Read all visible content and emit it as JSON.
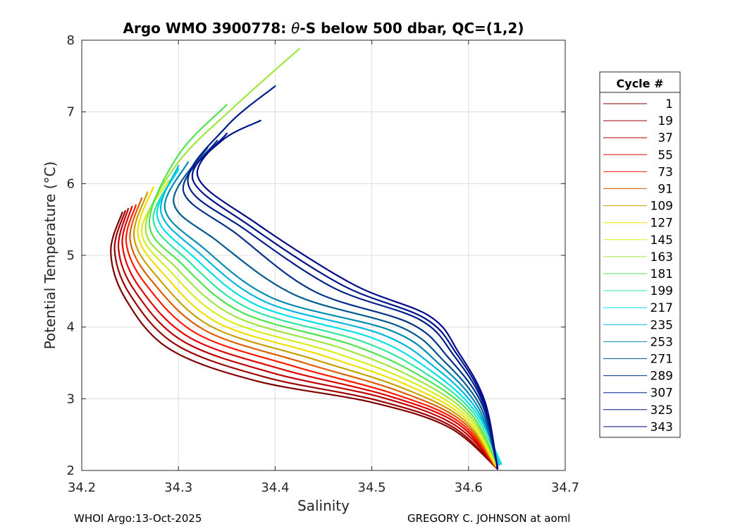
{
  "chart_data": {
    "type": "line",
    "title_prefix": "Argo WMO 3900778: ",
    "title_theta": "θ",
    "title_suffix": "-S below 500 dbar,  QC=(1,2)",
    "xlabel": "Salinity",
    "ylabel": "Potential Temperature (°C)",
    "xlim": [
      34.2,
      34.7
    ],
    "ylim": [
      2,
      8
    ],
    "xticks": [
      "34.2",
      "34.3",
      "34.4",
      "34.5",
      "34.6",
      "34.7"
    ],
    "yticks": [
      "2",
      "3",
      "4",
      "5",
      "6",
      "7",
      "8"
    ],
    "grid": true,
    "legend_title": "Cycle #",
    "legend_position": "right",
    "legend": [
      {
        "label": "1",
        "color": "#7f0000"
      },
      {
        "label": "19",
        "color": "#9c0000"
      },
      {
        "label": "37",
        "color": "#bd0000"
      },
      {
        "label": "55",
        "color": "#df0000"
      },
      {
        "label": "73",
        "color": "#ff1a00"
      },
      {
        "label": "91",
        "color": "#e05a00"
      },
      {
        "label": "109",
        "color": "#c8a000"
      },
      {
        "label": "127",
        "color": "#f0e000"
      },
      {
        "label": "145",
        "color": "#d6ef1a"
      },
      {
        "label": "163",
        "color": "#a0e640"
      },
      {
        "label": "181",
        "color": "#4ee44e"
      },
      {
        "label": "199",
        "color": "#2ee6a0"
      },
      {
        "label": "217",
        "color": "#00e0e8"
      },
      {
        "label": "235",
        "color": "#00b8e0"
      },
      {
        "label": "253",
        "color": "#008cb0"
      },
      {
        "label": "271",
        "color": "#005a90"
      },
      {
        "label": "289",
        "color": "#00308a"
      },
      {
        "label": "307",
        "color": "#001e8a"
      },
      {
        "label": "325",
        "color": "#00148a"
      },
      {
        "label": "343",
        "color": "#000a8a"
      }
    ],
    "series": [
      {
        "cycle": 1,
        "color": "#7f0000",
        "s": [
          34.63,
          34.58,
          34.5,
          34.38,
          34.29,
          34.245,
          34.23,
          34.242
        ],
        "t": [
          2.02,
          2.6,
          2.95,
          3.25,
          3.7,
          4.4,
          5.05,
          5.6
        ]
      },
      {
        "cycle": 19,
        "color": "#9c0000",
        "s": [
          34.63,
          34.582,
          34.505,
          34.39,
          34.298,
          34.25,
          34.234,
          34.245
        ],
        "t": [
          2.03,
          2.62,
          2.98,
          3.3,
          3.75,
          4.45,
          5.08,
          5.62
        ]
      },
      {
        "cycle": 37,
        "color": "#bd0000",
        "s": [
          34.63,
          34.585,
          34.51,
          34.4,
          34.305,
          34.255,
          34.238,
          34.248
        ],
        "t": [
          2.04,
          2.64,
          3.02,
          3.35,
          3.8,
          4.5,
          5.1,
          5.65
        ]
      },
      {
        "cycle": 55,
        "color": "#df0000",
        "s": [
          34.628,
          34.588,
          34.515,
          34.41,
          34.312,
          34.26,
          34.242,
          34.252
        ],
        "t": [
          2.05,
          2.66,
          3.05,
          3.4,
          3.85,
          4.55,
          5.15,
          5.68
        ]
      },
      {
        "cycle": 73,
        "color": "#ff1a00",
        "s": [
          34.628,
          34.59,
          34.52,
          34.42,
          34.32,
          34.266,
          34.246,
          34.256
        ],
        "t": [
          2.05,
          2.68,
          3.08,
          3.45,
          3.9,
          4.6,
          5.18,
          5.7
        ]
      },
      {
        "cycle": 91,
        "color": "#e05a00",
        "s": [
          34.628,
          34.592,
          34.525,
          34.43,
          34.328,
          34.272,
          34.25,
          34.262
        ],
        "t": [
          2.06,
          2.7,
          3.12,
          3.5,
          3.95,
          4.65,
          5.22,
          5.8
        ]
      },
      {
        "cycle": 109,
        "color": "#c8a000",
        "s": [
          34.628,
          34.594,
          34.53,
          34.44,
          34.335,
          34.278,
          34.254,
          34.268
        ],
        "t": [
          2.06,
          2.72,
          3.16,
          3.55,
          4.0,
          4.7,
          5.26,
          5.88
        ]
      },
      {
        "cycle": 127,
        "color": "#f0e000",
        "s": [
          34.628,
          34.596,
          34.535,
          34.45,
          34.342,
          34.284,
          34.258,
          34.274
        ],
        "t": [
          2.07,
          2.74,
          3.2,
          3.6,
          4.05,
          4.75,
          5.3,
          5.95
        ]
      },
      {
        "cycle": 145,
        "color": "#d6ef1a",
        "s": [
          34.63,
          34.598,
          34.54,
          34.46,
          34.35,
          34.29,
          34.262,
          34.29
        ],
        "t": [
          2.07,
          2.76,
          3.24,
          3.65,
          4.1,
          4.8,
          5.35,
          6.05
        ]
      },
      {
        "cycle": 163,
        "color": "#a0e640",
        "s": [
          34.63,
          34.6,
          34.545,
          34.47,
          34.358,
          34.296,
          34.266,
          34.3,
          34.36,
          34.425
        ],
        "t": [
          2.08,
          2.78,
          3.28,
          3.7,
          4.15,
          4.85,
          5.4,
          6.3,
          7.1,
          7.88
        ]
      },
      {
        "cycle": 181,
        "color": "#4ee44e",
        "s": [
          34.63,
          34.602,
          34.55,
          34.48,
          34.366,
          34.302,
          34.27,
          34.3,
          34.35
        ],
        "t": [
          2.08,
          2.8,
          3.32,
          3.75,
          4.2,
          4.9,
          5.45,
          6.4,
          7.1
        ]
      },
      {
        "cycle": 199,
        "color": "#2ee6a0",
        "s": [
          34.632,
          34.604,
          34.555,
          34.49,
          34.374,
          34.308,
          34.274,
          34.3
        ],
        "t": [
          2.09,
          2.82,
          3.36,
          3.8,
          4.25,
          4.95,
          5.5,
          6.2
        ]
      },
      {
        "cycle": 217,
        "color": "#00e0e8",
        "s": [
          34.634,
          34.606,
          34.56,
          34.5,
          34.382,
          34.314,
          34.278,
          34.3
        ],
        "t": [
          2.09,
          2.84,
          3.4,
          3.85,
          4.3,
          5.0,
          5.55,
          6.2
        ]
      },
      {
        "cycle": 235,
        "color": "#00b8e0",
        "s": [
          34.632,
          34.608,
          34.565,
          34.51,
          34.39,
          34.32,
          34.282,
          34.3
        ],
        "t": [
          2.08,
          2.86,
          3.44,
          3.9,
          4.35,
          5.05,
          5.6,
          6.25
        ]
      },
      {
        "cycle": 253,
        "color": "#008cb0",
        "s": [
          34.63,
          34.61,
          34.57,
          34.52,
          34.398,
          34.326,
          34.286,
          34.31
        ],
        "t": [
          2.07,
          2.88,
          3.48,
          3.95,
          4.4,
          5.1,
          5.65,
          6.3
        ]
      },
      {
        "cycle": 271,
        "color": "#005a90",
        "s": [
          34.63,
          34.612,
          34.575,
          34.53,
          34.42,
          34.34,
          34.295,
          34.33
        ],
        "t": [
          2.06,
          2.9,
          3.52,
          4.0,
          4.45,
          5.2,
          5.75,
          6.5
        ]
      },
      {
        "cycle": 289,
        "color": "#00308a",
        "s": [
          34.63,
          34.614,
          34.58,
          34.54,
          34.44,
          34.36,
          34.305,
          34.34
        ],
        "t": [
          2.05,
          2.92,
          3.56,
          4.05,
          4.5,
          5.3,
          5.9,
          6.6
        ]
      },
      {
        "cycle": 307,
        "color": "#001e8a",
        "s": [
          34.63,
          34.615,
          34.585,
          34.55,
          34.46,
          34.37,
          34.31,
          34.35,
          34.4
        ],
        "t": [
          2.04,
          2.94,
          3.6,
          4.1,
          4.55,
          5.35,
          6.0,
          6.8,
          7.36
        ]
      },
      {
        "cycle": 325,
        "color": "#00148a",
        "s": [
          34.63,
          34.616,
          34.588,
          34.555,
          34.47,
          34.375,
          34.315,
          34.345,
          34.385
        ],
        "t": [
          2.03,
          2.95,
          3.62,
          4.12,
          4.58,
          5.4,
          6.05,
          6.6,
          6.88
        ]
      },
      {
        "cycle": 343,
        "color": "#000a8a",
        "s": [
          34.63,
          34.617,
          34.59,
          34.56,
          34.48,
          34.38,
          34.32,
          34.35
        ],
        "t": [
          2.02,
          2.96,
          3.64,
          4.15,
          4.6,
          5.45,
          6.1,
          6.7
        ]
      }
    ]
  },
  "footer": {
    "left": "WHOI Argo:13-Oct-2025",
    "right": "GREGORY C. JOHNSON at aoml"
  }
}
